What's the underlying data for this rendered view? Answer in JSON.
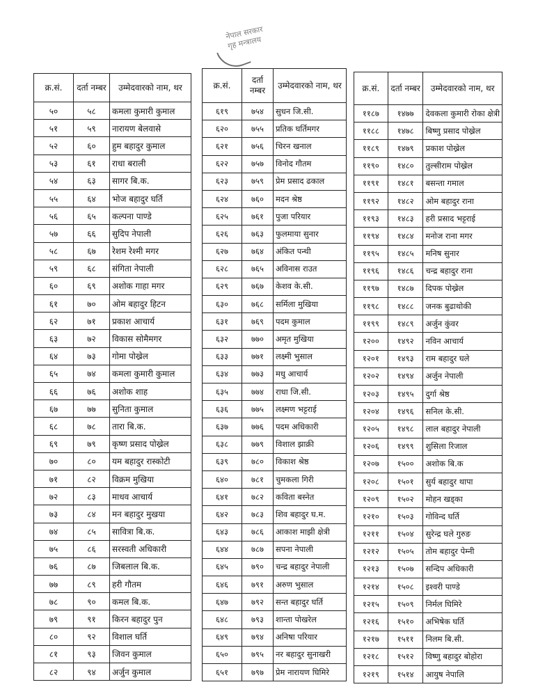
{
  "stamp": {
    "line1": "नेपाल सरकार",
    "line2": "गृह मन्त्रालय"
  },
  "headers": {
    "sn": "क्र.सं.",
    "reg": "दर्ता नम्बर",
    "name": "उम्मेदवारको नाम, थर"
  },
  "tables": [
    {
      "rows": [
        [
          "५०",
          "५८",
          "कमला कुमारी कुमाल"
        ],
        [
          "५१",
          "५९",
          "नारायण बेलवासे"
        ],
        [
          "५२",
          "६०",
          "हुम बहादुर कुमाल"
        ],
        [
          "५३",
          "६१",
          "राधा बराली"
        ],
        [
          "५४",
          "६३",
          "सागर बि.क."
        ],
        [
          "५५",
          "६४",
          "भोज बहादुर घर्ति"
        ],
        [
          "५६",
          "६५",
          "कल्पना पाण्डे"
        ],
        [
          "५७",
          "६६",
          "सुदिप नेपाली"
        ],
        [
          "५८",
          "६७",
          "रेशम रेश्मी मगर"
        ],
        [
          "५९",
          "६८",
          "संगिता नेपाली"
        ],
        [
          "६०",
          "६९",
          "अशोक गाहा मगर"
        ],
        [
          "६१",
          "७०",
          "ओम बहादुर हिटन"
        ],
        [
          "६२",
          "७१",
          "प्रकाश आचार्य"
        ],
        [
          "६३",
          "७२",
          "विकास सोमैमगर"
        ],
        [
          "६४",
          "७३",
          "गोमा पोख्रेल"
        ],
        [
          "६५",
          "७४",
          "कमला कुमारी कुमाल"
        ],
        [
          "६६",
          "७६",
          "अशोक शाह"
        ],
        [
          "६७",
          "७७",
          "सुनिता कुमाल"
        ],
        [
          "६८",
          "७८",
          "तारा बि.क."
        ],
        [
          "६९",
          "७९",
          "कृष्ण प्रसाद पोख्रेल"
        ],
        [
          "७०",
          "८०",
          "यम बहादुर रास्कोटी"
        ],
        [
          "७१",
          "८२",
          "विक्रम मुखिया"
        ],
        [
          "७२",
          "८३",
          "माधव आचार्य"
        ],
        [
          "७३",
          "८४",
          "मन बहादुर मुखया"
        ],
        [
          "७४",
          "८५",
          "सावित्रा बि.क."
        ],
        [
          "७५",
          "८६",
          "सरस्वती अधिकारी"
        ],
        [
          "७६",
          "८७",
          "जिबलाल बि.क."
        ],
        [
          "७७",
          "८९",
          "हरी गौतम"
        ],
        [
          "७८",
          "९०",
          "कमल बि.क."
        ],
        [
          "७९",
          "९१",
          "किरन बहादुर पुन"
        ],
        [
          "८०",
          "९२",
          "विशाल घर्ति"
        ],
        [
          "८१",
          "९३",
          "जिवन कुमाल"
        ],
        [
          "८२",
          "९४",
          "अर्जुन कुमाल"
        ]
      ]
    },
    {
      "rows": [
        [
          "६१९",
          "७५४",
          "सुधन जि.सी."
        ],
        [
          "६२०",
          "७५५",
          "प्रतिक घर्तिमगर"
        ],
        [
          "६२१",
          "७५६",
          "चिरन खनाल"
        ],
        [
          "६२२",
          "७५७",
          "विनोद गौतम"
        ],
        [
          "६२३",
          "७५९",
          "प्रेम प्रसाद ढकाल"
        ],
        [
          "६२४",
          "७६०",
          "मदन श्रेष्ठ"
        ],
        [
          "६२५",
          "७६१",
          "पुजा परियार"
        ],
        [
          "६२६",
          "७६३",
          "फुलमाया सुनार"
        ],
        [
          "६२७",
          "७६४",
          "अंकित पन्थी"
        ],
        [
          "६२८",
          "७६५",
          "अविनास राउत"
        ],
        [
          "६२९",
          "७६७",
          "केशव के.सी."
        ],
        [
          "६३०",
          "७६८",
          "सर्मिला मुखिया"
        ],
        [
          "६३१",
          "७६९",
          "पदम कुमाल"
        ],
        [
          "६३२",
          "७७०",
          "अमृत मुखिया"
        ],
        [
          "६३३",
          "७७१",
          "लक्ष्मी भुसाल"
        ],
        [
          "६३४",
          "७७३",
          "मधु आचार्य"
        ],
        [
          "६३५",
          "७७४",
          "राधा जि.सी."
        ],
        [
          "६३६",
          "७७५",
          "लक्ष्मण भट्टराई"
        ],
        [
          "६३७",
          "७७६",
          "पदम अधिकारी"
        ],
        [
          "६३८",
          "७७९",
          "विशाल झाक्री"
        ],
        [
          "६३९",
          "७८०",
          "विकाश श्रेष्ठ"
        ],
        [
          "६४०",
          "७८१",
          "चुमकला गिरी"
        ],
        [
          "६४१",
          "७८२",
          "कविता बस्नेत"
        ],
        [
          "६४२",
          "७८३",
          "शिव बहादुर घ.म."
        ],
        [
          "६४३",
          "७८६",
          "आकाश माझी क्षेत्री"
        ],
        [
          "६४४",
          "७८७",
          "सपना नेपाली"
        ],
        [
          "६४५",
          "७९०",
          "चन्द्र बहादुर नेपाली"
        ],
        [
          "६४६",
          "७९१",
          "अरुण भुसाल"
        ],
        [
          "६४७",
          "७९२",
          "सन्त बहादुर घर्ति"
        ],
        [
          "६४८",
          "७९३",
          "शान्ता पोखरेल"
        ],
        [
          "६४९",
          "७९४",
          "अनिषा परियार"
        ],
        [
          "६५०",
          "७९५",
          "नर बहादुर सुनाखरी"
        ],
        [
          "६५१",
          "७९७",
          "प्रेम नारायण घिमिरे"
        ]
      ]
    },
    {
      "rows": [
        [
          "११८७",
          "१४७७",
          "देवकला कुमारी रोका क्षेत्री"
        ],
        [
          "११८८",
          "१४७८",
          "बिष्णु प्रसाद पोख्रेल"
        ],
        [
          "११८९",
          "१४७९",
          "प्रकाश पोख्रेल"
        ],
        [
          "११९०",
          "१४८०",
          "तुल्सीराम पोख्रेल"
        ],
        [
          "११९१",
          "१४८१",
          "बसन्ता गमाल"
        ],
        [
          "११९२",
          "१४८२",
          "ओम बहादुर राना"
        ],
        [
          "११९३",
          "१४८३",
          "हरी प्रसाद भट्टराई"
        ],
        [
          "११९४",
          "१४८४",
          "मनोज राना मगर"
        ],
        [
          "११९५",
          "१४८५",
          "मनिष सुनार"
        ],
        [
          "११९६",
          "१४८६",
          "चन्द्र बहादुर राना"
        ],
        [
          "११९७",
          "१४८७",
          "दिपक पोख्रेल"
        ],
        [
          "११९८",
          "१४८८",
          "जनक बुढाथोकी"
        ],
        [
          "११९९",
          "१४८९",
          "अर्जुन कुंवर"
        ],
        [
          "१२००",
          "१४९२",
          "नविन आचार्य"
        ],
        [
          "१२०१",
          "१४९३",
          "राम बहादुर घले"
        ],
        [
          "१२०२",
          "१४९४",
          "अर्जुन नेपाली"
        ],
        [
          "१२०३",
          "१४९५",
          "दुर्गा श्रेष्ठ"
        ],
        [
          "१२०४",
          "१४९६",
          "सनिल के.सी."
        ],
        [
          "१२०५",
          "१४९८",
          "लाल बहादुर नेपाली"
        ],
        [
          "१२०६",
          "१४९९",
          "शुसिला रिजाल"
        ],
        [
          "१२०७",
          "१५००",
          "अशोक बि.क"
        ],
        [
          "१२०८",
          "१५०१",
          "सुर्य बहादुर थापा"
        ],
        [
          "१२०९",
          "१५०२",
          "मोहन खड्का"
        ],
        [
          "१२१०",
          "१५०३",
          "गोविन्द घर्ति"
        ],
        [
          "१२११",
          "१५०४",
          "सुरेन्द्र घले गुरुङ"
        ],
        [
          "१२१२",
          "१५०५",
          "तोम बहादुर पेम्नी"
        ],
        [
          "१२१३",
          "१५०७",
          "सन्दिप अधिकारी"
        ],
        [
          "१२१४",
          "१५०८",
          "इश्वरी पाण्डे"
        ],
        [
          "१२१५",
          "१५०९",
          "निर्मल घिमिरे"
        ],
        [
          "१२१६",
          "१५१०",
          "अभिषेक घर्ति"
        ],
        [
          "१२१७",
          "१५११",
          "निलम बि.सी."
        ],
        [
          "१२१८",
          "१५१२",
          "विष्णु बहादुर बोहोरा"
        ],
        [
          "१२१९",
          "१५१४",
          "आयुष नेपालि"
        ]
      ]
    }
  ]
}
